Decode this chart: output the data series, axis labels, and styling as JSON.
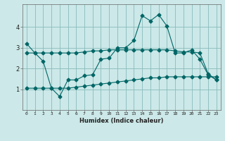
{
  "title": "",
  "xlabel": "Humidex (Indice chaleur)",
  "background_color": "#cce8e8",
  "grid_color": "#88bbbb",
  "line_color": "#006666",
  "xlim": [
    -0.5,
    23.5
  ],
  "ylim": [
    0,
    5.1
  ],
  "yticks": [
    1,
    2,
    3,
    4
  ],
  "ytick_labels": [
    "1",
    "2",
    "3",
    "4"
  ],
  "xticks": [
    0,
    1,
    2,
    3,
    4,
    5,
    6,
    7,
    8,
    9,
    10,
    11,
    12,
    13,
    14,
    15,
    16,
    17,
    18,
    19,
    20,
    21,
    22,
    23
  ],
  "line1_x": [
    0,
    1,
    2,
    3,
    4,
    5,
    6,
    7,
    8,
    9,
    10,
    11,
    12,
    13,
    14,
    15,
    16,
    17,
    18,
    19,
    20,
    21,
    22,
    23
  ],
  "line1_y": [
    3.2,
    2.75,
    2.35,
    1.05,
    0.65,
    1.45,
    1.45,
    1.65,
    1.7,
    2.45,
    2.5,
    3.0,
    3.0,
    3.35,
    4.55,
    4.3,
    4.6,
    4.05,
    2.75,
    2.75,
    2.9,
    2.45,
    1.7,
    1.45
  ],
  "line2_x": [
    0,
    1,
    2,
    3,
    4,
    5,
    6,
    7,
    8,
    9,
    10,
    11,
    12,
    13,
    14,
    15,
    16,
    17,
    18,
    19,
    20,
    21,
    22,
    23
  ],
  "line2_y": [
    2.75,
    2.75,
    2.75,
    2.75,
    2.75,
    2.75,
    2.75,
    2.8,
    2.85,
    2.85,
    2.9,
    2.9,
    2.9,
    2.9,
    2.9,
    2.9,
    2.9,
    2.9,
    2.85,
    2.8,
    2.8,
    2.75,
    1.75,
    1.45
  ],
  "line3_x": [
    0,
    1,
    2,
    3,
    4,
    5,
    6,
    7,
    8,
    9,
    10,
    11,
    12,
    13,
    14,
    15,
    16,
    17,
    18,
    19,
    20,
    21,
    22,
    23
  ],
  "line3_y": [
    1.05,
    1.05,
    1.05,
    1.05,
    1.05,
    1.05,
    1.1,
    1.15,
    1.2,
    1.25,
    1.3,
    1.35,
    1.4,
    1.45,
    1.5,
    1.55,
    1.55,
    1.6,
    1.6,
    1.6,
    1.6,
    1.6,
    1.6,
    1.6
  ]
}
